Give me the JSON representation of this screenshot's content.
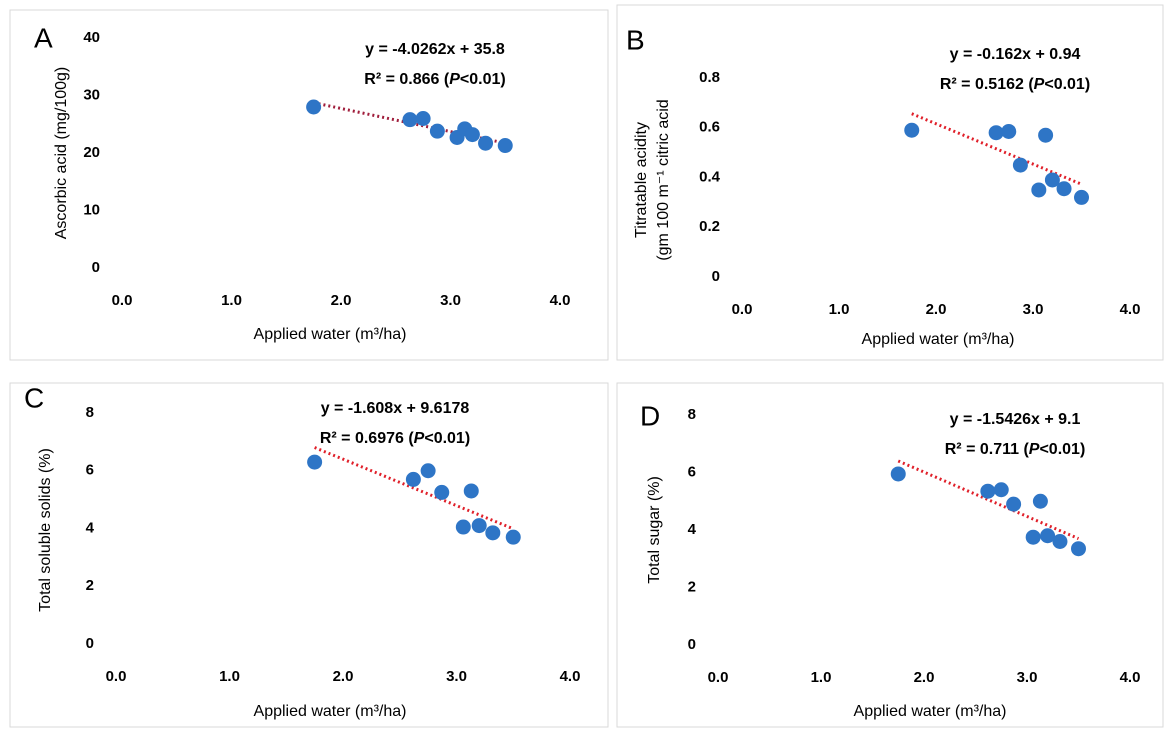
{
  "chart_data": [
    {
      "type": "scatter",
      "panel_label": "A",
      "equation": "y = -4.0262x + 35.8",
      "r2": {
        "prefix": "R² = 0.866 (",
        "italic": "P",
        "suffix": "<0.01)"
      },
      "ylabel": [
        "Ascorbic acid (mg/100g)"
      ],
      "xlabel": "Applied water (m³/ha)",
      "x": [
        1.75,
        2.63,
        2.75,
        2.88,
        3.06,
        3.13,
        3.2,
        3.32,
        3.5
      ],
      "values": [
        28,
        25.8,
        26,
        23.8,
        22.7,
        24.2,
        23.2,
        21.7,
        21.3
      ],
      "color": "#2e75c6",
      "trend": {
        "slope": -4.0262,
        "intercept": 35.8,
        "color": "#a01e3c"
      },
      "xlim": [
        0,
        4
      ],
      "ylim": [
        0,
        40
      ],
      "xticks": [
        {
          "value": 0,
          "label": "0.0"
        },
        {
          "value": 1,
          "label": "1.0"
        },
        {
          "value": 2,
          "label": "2.0"
        },
        {
          "value": 3,
          "label": "3.0"
        },
        {
          "value": 4,
          "label": "4.0"
        }
      ],
      "yticks": [
        0,
        10,
        20,
        30,
        40
      ]
    },
    {
      "type": "scatter",
      "panel_label": "B",
      "equation": "y = -0.162x + 0.94",
      "r2": {
        "prefix": "R² = 0.5162 (",
        "italic": "P",
        "suffix": "<0.01)"
      },
      "ylabel": [
        "Titratable acidity",
        "(gm 100 m⁻¹ citric acid"
      ],
      "xlabel": "Applied water (m³/ha)",
      "x": [
        1.75,
        2.62,
        2.75,
        2.87,
        3.06,
        3.13,
        3.2,
        3.32,
        3.5
      ],
      "values": [
        0.59,
        0.58,
        0.585,
        0.45,
        0.35,
        0.57,
        0.39,
        0.355,
        0.32
      ],
      "color": "#2e75c6",
      "trend": {
        "slope": -0.162,
        "intercept": 0.94,
        "color": "#e0202a"
      },
      "xlim": [
        0,
        4
      ],
      "ylim": [
        0,
        0.8
      ],
      "xticks": [
        {
          "value": 0,
          "label": "0.0"
        },
        {
          "value": 1,
          "label": "1.0"
        },
        {
          "value": 2,
          "label": "2.0"
        },
        {
          "value": 3,
          "label": "3.0"
        },
        {
          "value": 4,
          "label": "4.0"
        }
      ],
      "yticks": [
        0,
        0.2,
        0.4,
        0.6,
        0.8
      ]
    },
    {
      "type": "scatter",
      "panel_label": "C",
      "equation": "y = -1.608x + 9.6178",
      "r2": {
        "prefix": "R² = 0.6976 (",
        "italic": "P",
        "suffix": "<0.01)"
      },
      "ylabel": [
        "Total soluble solids (%)"
      ],
      "xlabel": "Applied water (m³/ha)",
      "x": [
        1.75,
        2.62,
        2.75,
        2.87,
        3.06,
        3.13,
        3.2,
        3.32,
        3.5
      ],
      "values": [
        6.3,
        5.7,
        6.0,
        5.25,
        4.05,
        5.3,
        4.1,
        3.85,
        3.7
      ],
      "color": "#2e75c6",
      "trend": {
        "slope": -1.608,
        "intercept": 9.6178,
        "color": "#e0202a"
      },
      "xlim": [
        0,
        4
      ],
      "ylim": [
        0,
        8
      ],
      "xticks": [
        {
          "value": 0,
          "label": "0.0"
        },
        {
          "value": 1,
          "label": "1.0"
        },
        {
          "value": 2,
          "label": "2.0"
        },
        {
          "value": 3,
          "label": "3.0"
        },
        {
          "value": 4,
          "label": "4.0"
        }
      ],
      "yticks": [
        0,
        2,
        4,
        6,
        8
      ]
    },
    {
      "type": "scatter",
      "panel_label": "D",
      "equation": "y = -1.5426x + 9.1",
      "r2": {
        "prefix": "R² = 0.711 (",
        "italic": "P",
        "suffix": "<0.01)"
      },
      "ylabel": [
        "Total sugar (%)"
      ],
      "xlabel": "Applied water (m³/ha)",
      "x": [
        1.75,
        2.62,
        2.75,
        2.87,
        3.06,
        3.13,
        3.2,
        3.32,
        3.5
      ],
      "values": [
        5.95,
        5.35,
        5.4,
        4.9,
        3.75,
        5.0,
        3.8,
        3.6,
        3.35
      ],
      "color": "#2e75c6",
      "trend": {
        "slope": -1.5426,
        "intercept": 9.1,
        "color": "#e0202a"
      },
      "xlim": [
        0,
        4
      ],
      "ylim": [
        0,
        8
      ],
      "xticks": [
        {
          "value": 0,
          "label": "0.0"
        },
        {
          "value": 1,
          "label": "1.0"
        },
        {
          "value": 2,
          "label": "2.0"
        },
        {
          "value": 3,
          "label": "3.0"
        },
        {
          "value": 4,
          "label": "4.0"
        }
      ],
      "yticks": [
        0,
        2,
        4,
        6,
        8
      ]
    }
  ]
}
